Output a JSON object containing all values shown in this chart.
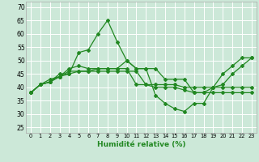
{
  "title": "",
  "xlabel": "Humidité relative (%)",
  "background_color": "#cce8d8",
  "grid_color": "#ffffff",
  "line_color": "#228822",
  "xlim": [
    -0.5,
    23.5
  ],
  "ylim": [
    23,
    72
  ],
  "yticks": [
    25,
    30,
    35,
    40,
    45,
    50,
    55,
    60,
    65,
    70
  ],
  "xticks": [
    0,
    1,
    2,
    3,
    4,
    5,
    6,
    7,
    8,
    9,
    10,
    11,
    12,
    13,
    14,
    15,
    16,
    17,
    18,
    19,
    20,
    21,
    22,
    23
  ],
  "series": [
    [
      38,
      41,
      42,
      45,
      45,
      53,
      54,
      60,
      65,
      57,
      50,
      47,
      47,
      37,
      34,
      32,
      31,
      34,
      34,
      40,
      41,
      45,
      48,
      51
    ],
    [
      38,
      41,
      43,
      44,
      46,
      46,
      46,
      47,
      47,
      47,
      47,
      41,
      41,
      41,
      41,
      41,
      40,
      40,
      40,
      40,
      40,
      40,
      40,
      40
    ],
    [
      38,
      41,
      42,
      44,
      45,
      46,
      46,
      46,
      46,
      46,
      46,
      46,
      41,
      40,
      40,
      40,
      39,
      38,
      38,
      38,
      38,
      38,
      38,
      38
    ],
    [
      38,
      41,
      42,
      44,
      47,
      48,
      47,
      47,
      47,
      47,
      50,
      47,
      47,
      47,
      43,
      43,
      43,
      38,
      38,
      40,
      45,
      48,
      51,
      51
    ]
  ]
}
